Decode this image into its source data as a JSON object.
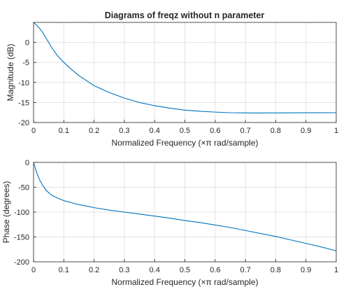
{
  "figure_title": "Diagrams of freqz without n parameter",
  "chart_data": [
    {
      "type": "line",
      "title": "Diagrams of freqz without n parameter",
      "xlabel": "Normalized Frequency  (×π rad/sample)",
      "ylabel": "Magnitude (dB)",
      "xlim": [
        0,
        1
      ],
      "ylim": [
        -20,
        5
      ],
      "xticks": [
        0,
        0.1,
        0.2,
        0.3,
        0.4,
        0.5,
        0.6,
        0.7,
        0.8,
        0.9,
        1
      ],
      "yticks": [
        -20,
        -15,
        -10,
        -5,
        0
      ],
      "grid": true,
      "color": "#0072bd",
      "x": [
        0,
        0.01,
        0.02,
        0.03,
        0.04,
        0.05,
        0.06,
        0.08,
        0.1,
        0.12,
        0.15,
        0.2,
        0.25,
        0.3,
        0.35,
        0.4,
        0.45,
        0.5,
        0.55,
        0.6,
        0.65,
        0.7,
        0.75,
        0.8,
        0.85,
        0.9,
        0.95,
        1
      ],
      "y": [
        5.0,
        4.3,
        3.5,
        2.5,
        1.2,
        0.0,
        -1.3,
        -3.4,
        -5.0,
        -6.4,
        -8.3,
        -10.8,
        -12.5,
        -13.9,
        -15.0,
        -15.8,
        -16.4,
        -16.9,
        -17.2,
        -17.4,
        -17.55,
        -17.6,
        -17.62,
        -17.6,
        -17.58,
        -17.57,
        -17.56,
        -17.55
      ]
    },
    {
      "type": "line",
      "xlabel": "Normalized Frequency  (×π rad/sample)",
      "ylabel": "Phase (degrees)",
      "xlim": [
        0,
        1
      ],
      "ylim": [
        -200,
        0
      ],
      "xticks": [
        0,
        0.1,
        0.2,
        0.3,
        0.4,
        0.5,
        0.6,
        0.7,
        0.8,
        0.9,
        1
      ],
      "yticks": [
        -200,
        -150,
        -100,
        -50,
        0
      ],
      "grid": true,
      "color": "#0072bd",
      "x": [
        0,
        0.005,
        0.01,
        0.02,
        0.03,
        0.04,
        0.05,
        0.06,
        0.08,
        0.1,
        0.15,
        0.2,
        0.25,
        0.3,
        0.35,
        0.4,
        0.45,
        0.5,
        0.55,
        0.6,
        0.65,
        0.7,
        0.75,
        0.8,
        0.85,
        0.9,
        0.95,
        1
      ],
      "y": [
        0,
        -10,
        -20,
        -35,
        -46,
        -55,
        -61,
        -66,
        -72,
        -77,
        -85,
        -91,
        -96,
        -100,
        -104,
        -108,
        -112,
        -117,
        -121,
        -126,
        -131,
        -137,
        -143,
        -149,
        -156,
        -163,
        -170,
        -178
      ]
    }
  ]
}
